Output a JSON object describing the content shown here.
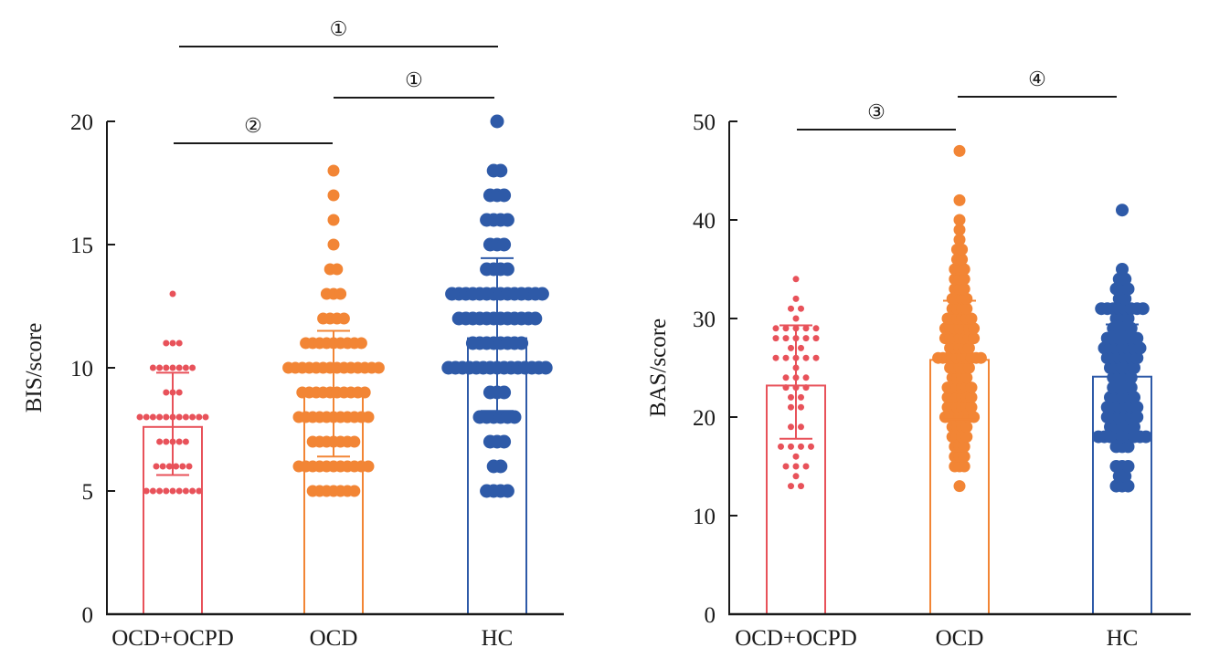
{
  "chart_data": [
    {
      "type": "bar",
      "subtype": "bar-with-scatter-and-sd",
      "ylabel": "BIS/score",
      "xlabel": "",
      "ylim": [
        0,
        20
      ],
      "yticks": [
        0,
        5,
        10,
        15,
        20
      ],
      "categories": [
        "OCD+OCPD",
        "OCD",
        "HC"
      ],
      "colors": [
        "#e8525a",
        "#f28535",
        "#2e5aa8"
      ],
      "means": [
        7.6,
        8.85,
        11.2
      ],
      "sd_upper": [
        9.8,
        11.5,
        14.45
      ],
      "sd_lower": [
        5.65,
        6.4,
        8.25
      ],
      "points": [
        {
          "group": "OCD+OCPD",
          "value_counts": {
            "13": 1,
            "11": 3,
            "10": 7,
            "9": 3,
            "8": 11,
            "7": 5,
            "6": 6,
            "5": 9
          }
        },
        {
          "group": "OCD",
          "value_counts": {
            "18": 1,
            "17": 1,
            "16": 1,
            "15": 1,
            "14": 2,
            "13": 3,
            "12": 4,
            "11": 9,
            "10": 14,
            "9": 10,
            "8": 11,
            "7": 7,
            "6": 11,
            "5": 7
          }
        },
        {
          "group": "HC",
          "value_counts": {
            "20": 1,
            "18": 2,
            "17": 3,
            "16": 4,
            "15": 3,
            "14": 4,
            "13": 14,
            "12": 12,
            "11": 8,
            "10": 15,
            "9": 3,
            "8": 6,
            "7": 3,
            "6": 2,
            "5": 4
          }
        }
      ],
      "significance": [
        {
          "from": "OCD+OCPD",
          "to": "HC",
          "label": "①",
          "level": 3
        },
        {
          "from": "OCD",
          "to": "HC",
          "label": "①",
          "level": 2
        },
        {
          "from": "OCD+OCPD",
          "to": "OCD",
          "label": "②",
          "level": 1
        }
      ]
    },
    {
      "type": "bar",
      "subtype": "bar-with-scatter-and-sd",
      "ylabel": "BAS/score",
      "xlabel": "",
      "ylim": [
        0,
        50
      ],
      "yticks": [
        0,
        10,
        20,
        30,
        40,
        50
      ],
      "categories": [
        "OCD+OCPD",
        "OCD",
        "HC"
      ],
      "colors": [
        "#e8525a",
        "#f28535",
        "#2e5aa8"
      ],
      "means": [
        23.2,
        25.8,
        24.1
      ],
      "sd_upper": [
        29.3,
        31.8,
        29.4
      ],
      "sd_lower": [
        17.8,
        19.8,
        18.8
      ],
      "points": [
        {
          "group": "OCD+OCPD",
          "value_counts": {
            "34": 1,
            "32": 1,
            "31": 2,
            "30": 1,
            "29": 5,
            "28": 5,
            "27": 2,
            "26": 5,
            "25": 1,
            "24": 3,
            "23": 3,
            "22": 2,
            "21": 2,
            "19": 2,
            "17": 4,
            "16": 1,
            "15": 3,
            "14": 1,
            "13": 2
          }
        },
        {
          "group": "OCD",
          "value_counts": {
            "47": 1,
            "42": 1,
            "40": 1,
            "39": 1,
            "38": 1,
            "37": 2,
            "36": 2,
            "35": 3,
            "34": 3,
            "33": 3,
            "32": 4,
            "31": 4,
            "30": 6,
            "29": 7,
            "28": 7,
            "27": 5,
            "26": 10,
            "25": 5,
            "24": 4,
            "23": 6,
            "22": 6,
            "21": 6,
            "20": 7,
            "19": 4,
            "18": 4,
            "17": 3,
            "16": 3,
            "15": 3,
            "13": 1
          }
        },
        {
          "group": "HC",
          "value_counts": {
            "41": 1,
            "35": 1,
            "34": 2,
            "33": 3,
            "32": 2,
            "31": 8,
            "30": 3,
            "29": 4,
            "28": 6,
            "27": 7,
            "26": 6,
            "25": 5,
            "24": 4,
            "23": 4,
            "22": 5,
            "21": 6,
            "20": 6,
            "19": 5,
            "18": 9,
            "17": 3,
            "15": 3,
            "14": 2,
            "13": 3
          }
        }
      ],
      "significance": [
        {
          "from": "OCD+OCPD",
          "to": "OCD",
          "label": "③",
          "level": 1
        },
        {
          "from": "OCD",
          "to": "HC",
          "label": "④",
          "level": 2
        }
      ]
    }
  ]
}
